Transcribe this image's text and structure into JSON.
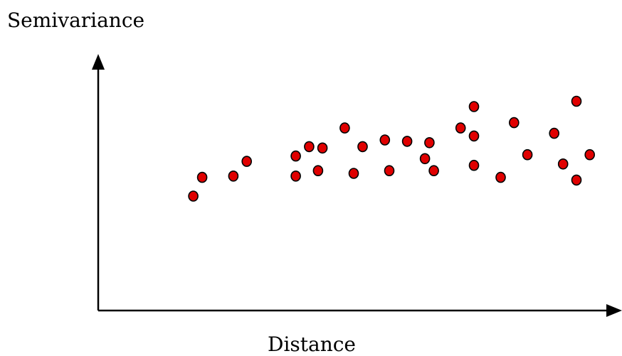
{
  "chart_data": {
    "type": "scatter",
    "title": "",
    "ylabel": "Semivariance",
    "xlabel": "Distance",
    "grid": false,
    "ticks": false,
    "colors": {
      "point_fill": "#e00000",
      "point_stroke": "#000000",
      "axes": "#000000"
    },
    "xlim": [
      0,
      100
    ],
    "ylim": [
      0,
      100
    ],
    "points": [
      [
        10,
        33
      ],
      [
        12,
        47
      ],
      [
        19,
        48
      ],
      [
        22,
        59
      ],
      [
        33,
        48
      ],
      [
        33,
        63
      ],
      [
        36,
        70
      ],
      [
        38,
        52
      ],
      [
        39,
        69
      ],
      [
        44,
        84
      ],
      [
        46,
        50
      ],
      [
        48,
        70
      ],
      [
        53,
        75
      ],
      [
        54,
        52
      ],
      [
        58,
        74
      ],
      [
        62,
        61
      ],
      [
        63,
        73
      ],
      [
        64,
        52
      ],
      [
        70,
        84
      ],
      [
        73,
        100
      ],
      [
        73,
        78
      ],
      [
        73,
        56
      ],
      [
        79,
        47
      ],
      [
        82,
        88
      ],
      [
        85,
        64
      ],
      [
        91,
        80
      ],
      [
        93,
        57
      ],
      [
        96,
        45
      ],
      [
        96,
        104
      ],
      [
        99,
        64
      ]
    ]
  }
}
